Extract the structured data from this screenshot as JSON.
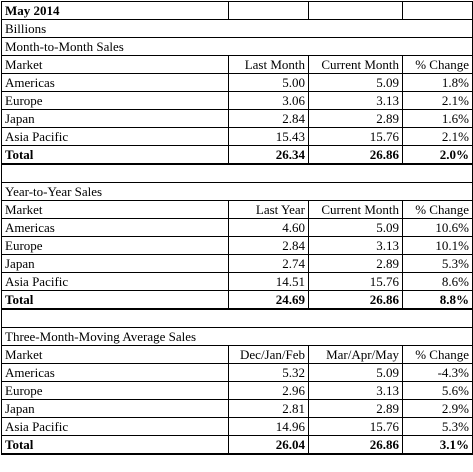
{
  "title": "May 2014",
  "unit": "Billions",
  "sections": [
    {
      "title": "Month-to-Month Sales",
      "header": [
        "Market",
        "Last Month",
        "Current Month",
        "% Change"
      ],
      "rows": [
        [
          "Americas",
          "5.00",
          "5.09",
          "1.8%"
        ],
        [
          "Europe",
          "3.06",
          "3.13",
          "2.1%"
        ],
        [
          "Japan",
          "2.84",
          "2.89",
          "1.6%"
        ],
        [
          "Asia Pacific",
          "15.43",
          "15.76",
          "2.1%"
        ]
      ],
      "total": [
        "Total",
        "26.34",
        "26.86",
        "2.0%"
      ]
    },
    {
      "title": "Year-to-Year Sales",
      "header": [
        "Market",
        "Last Year",
        "Current Month",
        "% Change"
      ],
      "rows": [
        [
          "Americas",
          "4.60",
          "5.09",
          "10.6%"
        ],
        [
          "Europe",
          "2.84",
          "3.13",
          "10.1%"
        ],
        [
          "Japan",
          "2.74",
          "2.89",
          "5.3%"
        ],
        [
          "Asia Pacific",
          "14.51",
          "15.76",
          "8.6%"
        ]
      ],
      "total": [
        "Total",
        "24.69",
        "26.86",
        "8.8%"
      ]
    },
    {
      "title": "Three-Month-Moving Average Sales",
      "header": [
        "Market",
        "Dec/Jan/Feb",
        "Mar/Apr/May",
        "% Change"
      ],
      "rows": [
        [
          "Americas",
          "5.32",
          "5.09",
          "-4.3%"
        ],
        [
          "Europe",
          "2.96",
          "3.13",
          "5.6%"
        ],
        [
          "Japan",
          "2.81",
          "2.89",
          "2.9%"
        ],
        [
          "Asia Pacific",
          "14.96",
          "15.76",
          "5.3%"
        ]
      ],
      "total": [
        "Total",
        "26.04",
        "26.86",
        "3.1%"
      ]
    }
  ]
}
